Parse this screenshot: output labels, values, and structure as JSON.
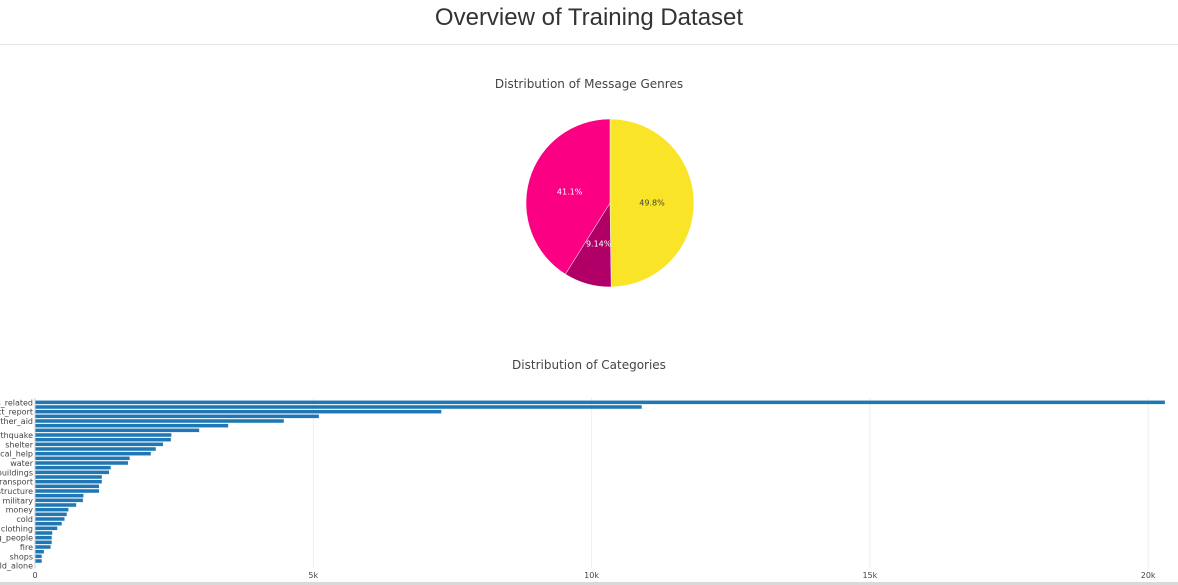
{
  "page": {
    "title": "Overview of Training Dataset"
  },
  "chart_data": [
    {
      "type": "pie",
      "title": "Distribution of Message Genres",
      "slices": [
        {
          "label": "",
          "percent": 49.8,
          "display": "49.8%",
          "color": "#f9e427"
        },
        {
          "label": "",
          "percent": 9.14,
          "display": "9.14%",
          "color": "#b00068"
        },
        {
          "label": "",
          "percent": 41.1,
          "display": "41.1%",
          "color": "#fb0083"
        }
      ]
    },
    {
      "type": "bar",
      "orientation": "horizontal",
      "title": "Distribution of Categories",
      "xlim": [
        0,
        20500
      ],
      "xticks": [
        0,
        5000,
        10000,
        15000,
        20000
      ],
      "xtick_labels": [
        "0",
        "5k",
        "10k",
        "15k",
        "20k"
      ],
      "bar_color": "#1f77b4",
      "grid": true,
      "categories": [
        "related",
        "",
        "direct_report",
        "",
        "other_aid",
        "",
        "",
        "earthquake",
        "",
        "shelter",
        "",
        "medical_help",
        "",
        "water",
        "",
        "buildings",
        "",
        "transport",
        "",
        "infrastructure",
        "",
        "military",
        "",
        "money",
        "",
        "cold",
        "",
        "clothing",
        "",
        "missing_people",
        "",
        "fire",
        "",
        "shops",
        "",
        "child_alone"
      ],
      "tick_labels": [
        "s_related",
        "",
        "ct_report",
        "",
        "other_aid",
        "",
        "",
        "rthquake",
        "",
        "shelter",
        "",
        "ical_help",
        "",
        "water",
        "",
        "buildings",
        "",
        "transport",
        "",
        "structure",
        "",
        "military",
        "",
        "money",
        "",
        "cold",
        "",
        "clothing",
        "",
        "g_people",
        "",
        "fire",
        "",
        "shops",
        "",
        "ild_alone"
      ],
      "values": [
        20300,
        10900,
        7300,
        5100,
        4470,
        3470,
        2950,
        2450,
        2440,
        2300,
        2170,
        2080,
        1700,
        1670,
        1360,
        1330,
        1200,
        1200,
        1150,
        1150,
        870,
        860,
        740,
        600,
        570,
        530,
        480,
        400,
        310,
        300,
        300,
        280,
        160,
        120,
        120,
        0
      ]
    }
  ]
}
